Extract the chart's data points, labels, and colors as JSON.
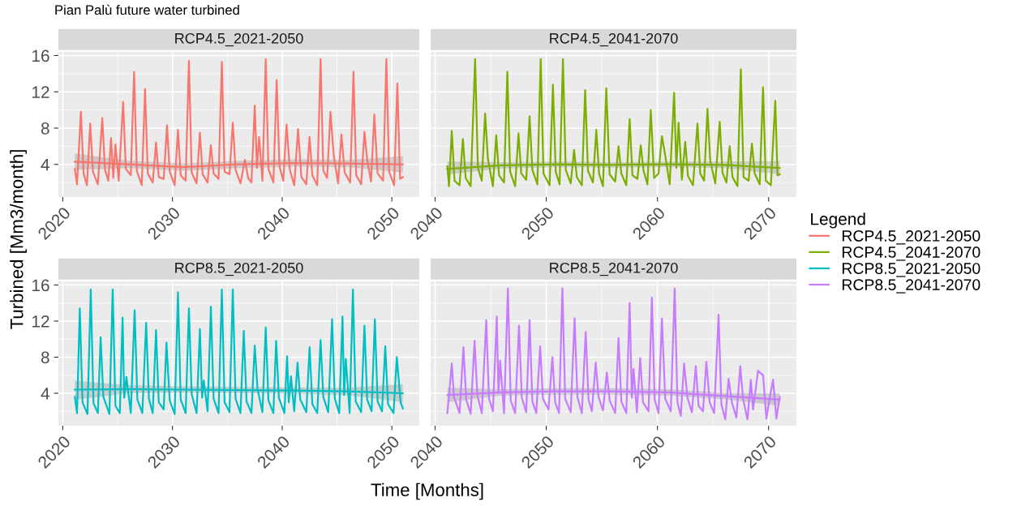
{
  "chart_data": [
    {
      "type": "line",
      "title": "RCP4.5_2021-2050",
      "annotations": [
        "Pian Palù future water turbined"
      ],
      "ylabel": "Turbined [Mm3/month]",
      "legend_title": "Legend",
      "legend": "right",
      "grid": true,
      "xlim": [
        2019.6,
        2052.5
      ],
      "xticks": [
        2020,
        2030,
        2040,
        2050
      ],
      "ylim": [
        0.4,
        16.4
      ],
      "yticks": [
        4,
        8,
        12,
        16
      ],
      "series": [
        {
          "name": "RCP4.5_2021-2050",
          "color": "#f8766d",
          "x": [
            2021.1,
            2021.3,
            2021.65,
            2021.9,
            2022.2,
            2022.5,
            2022.75,
            2023.2,
            2023.6,
            2023.85,
            2024.15,
            2024.4,
            2024.6,
            2024.8,
            2025.1,
            2025.5,
            2025.75,
            2026.2,
            2026.5,
            2026.75,
            2027.2,
            2027.5,
            2027.75,
            2028.2,
            2028.5,
            2028.75,
            2029.2,
            2029.5,
            2029.75,
            2030.2,
            2030.5,
            2030.75,
            2031.2,
            2031.5,
            2031.75,
            2032.2,
            2032.5,
            2032.75,
            2033.2,
            2033.5,
            2033.75,
            2034.2,
            2034.5,
            2034.75,
            2035.2,
            2035.5,
            2035.75,
            2036.2,
            2036.6,
            2036.9,
            2037.2,
            2037.5,
            2037.7,
            2037.9,
            2038.2,
            2038.5,
            2038.75,
            2039.2,
            2039.5,
            2039.75,
            2040.1,
            2040.4,
            2040.7,
            2041.1,
            2041.45,
            2041.75,
            2042.2,
            2042.5,
            2042.75,
            2043.2,
            2043.5,
            2043.75,
            2044.1,
            2044.4,
            2044.7,
            2045.1,
            2045.4,
            2045.7,
            2046.2,
            2046.5,
            2046.75,
            2047.2,
            2047.5,
            2047.75,
            2048.1,
            2048.4,
            2048.7,
            2049.2,
            2049.5,
            2049.75,
            2050.2,
            2050.5,
            2050.75,
            2051.0
          ],
          "values": [
            3.5,
            1.8,
            9.8,
            3.0,
            1.7,
            8.5,
            3.2,
            1.8,
            9.1,
            3.4,
            2.2,
            6.9,
            2.5,
            6.2,
            2.2,
            10.9,
            3.5,
            2.8,
            14.2,
            3.3,
            1.7,
            12.3,
            3.0,
            2.0,
            6.4,
            2.6,
            2.4,
            8.3,
            3.2,
            1.7,
            7.8,
            2.8,
            2.2,
            15.4,
            3.1,
            1.9,
            7.5,
            2.9,
            2.0,
            6.1,
            3.0,
            2.4,
            15.3,
            3.2,
            2.9,
            8.6,
            3.4,
            1.9,
            4.5,
            2.5,
            2.0,
            10.5,
            3.6,
            7.0,
            2.2,
            15.6,
            3.5,
            2.0,
            13.3,
            3.8,
            2.2,
            8.4,
            3.4,
            1.7,
            7.9,
            2.6,
            1.8,
            7.0,
            2.8,
            1.7,
            15.6,
            3.3,
            2.5,
            9.8,
            5.0,
            1.9,
            7.3,
            3.1,
            2.0,
            14.2,
            2.8,
            1.8,
            7.6,
            4.5,
            2.1,
            9.5,
            3.0,
            2.2,
            15.6,
            3.2,
            1.7,
            12.9,
            2.4,
            2.6
          ]
        },
        {
          "type": "line",
          "color": "#f8766d",
          "x": [
            2021.1,
            2026,
            2031,
            2036,
            2041,
            2046,
            2051
          ],
          "values": [
            4.3,
            4.0,
            3.7,
            4.0,
            4.15,
            4.1,
            4.0
          ],
          "lower": [
            3.4,
            3.6,
            3.3,
            3.6,
            3.75,
            3.7,
            3.1
          ],
          "upper": [
            5.2,
            4.4,
            4.1,
            4.4,
            4.55,
            4.5,
            4.9
          ]
        }
      ]
    },
    {
      "type": "line",
      "title": "RCP4.5_2041-2070",
      "legend": "right",
      "grid": true,
      "tick_labels": "x",
      "xlim": [
        2039.6,
        2072.5
      ],
      "xticks": [
        2040,
        2050,
        2060,
        2070
      ],
      "ylim": [
        0.4,
        16.4
      ],
      "yticks": [
        4,
        8,
        12,
        16
      ],
      "series": [
        {
          "name": "RCP4.5_2041-2070",
          "color": "#7cae00",
          "x": [
            2041.1,
            2041.25,
            2041.5,
            2041.75,
            2042.2,
            2042.5,
            2042.75,
            2043.2,
            2043.6,
            2043.85,
            2044.2,
            2044.5,
            2044.75,
            2045.2,
            2045.5,
            2045.75,
            2046.2,
            2046.5,
            2046.75,
            2047.2,
            2047.5,
            2047.75,
            2048.2,
            2048.5,
            2048.75,
            2049.2,
            2049.5,
            2049.75,
            2050.3,
            2050.6,
            2050.85,
            2051.2,
            2051.5,
            2051.75,
            2052.2,
            2052.5,
            2052.75,
            2053.2,
            2053.5,
            2053.75,
            2054.2,
            2054.5,
            2054.75,
            2055.1,
            2055.4,
            2055.7,
            2056.2,
            2056.5,
            2056.75,
            2057.2,
            2057.5,
            2057.75,
            2058.2,
            2058.5,
            2058.75,
            2059.1,
            2059.4,
            2059.7,
            2060.1,
            2060.4,
            2060.7,
            2061.1,
            2061.5,
            2061.7,
            2061.9,
            2062.2,
            2062.5,
            2062.75,
            2063.2,
            2063.6,
            2063.85,
            2064.2,
            2064.5,
            2064.75,
            2065.2,
            2065.6,
            2065.85,
            2066.2,
            2066.5,
            2066.75,
            2067.2,
            2067.5,
            2067.75,
            2068.2,
            2068.5,
            2068.75,
            2069.2,
            2069.5,
            2069.75,
            2070.2,
            2070.6,
            2070.8,
            2071.0
          ],
          "values": [
            3.8,
            1.6,
            7.7,
            2.2,
            1.7,
            6.8,
            2.5,
            1.6,
            15.6,
            3.6,
            2.2,
            9.6,
            4.6,
            1.6,
            7.2,
            2.8,
            2.0,
            14.2,
            3.2,
            1.6,
            7.4,
            3.0,
            2.3,
            9.3,
            3.4,
            1.8,
            15.6,
            3.0,
            1.7,
            12.8,
            3.2,
            1.8,
            15.6,
            3.4,
            1.9,
            5.6,
            2.6,
            1.7,
            12.2,
            3.3,
            2.0,
            7.8,
            3.0,
            1.6,
            12.4,
            2.9,
            2.1,
            6.0,
            3.0,
            1.7,
            9.0,
            2.8,
            2.4,
            6.1,
            3.3,
            1.8,
            10.0,
            2.5,
            3.0,
            7.1,
            5.0,
            1.8,
            11.9,
            3.6,
            8.6,
            2.3,
            6.5,
            2.7,
            1.7,
            8.5,
            3.0,
            2.2,
            10.1,
            4.4,
            1.9,
            8.7,
            3.1,
            2.0,
            6.0,
            2.6,
            1.6,
            14.5,
            2.6,
            2.2,
            6.3,
            3.0,
            1.8,
            12.5,
            2.2,
            1.7,
            11.0,
            2.8,
            2.9
          ]
        },
        {
          "type": "line",
          "color": "#7cae00",
          "x": [
            2041.1,
            2046,
            2051,
            2056,
            2061,
            2066,
            2071
          ],
          "values": [
            3.5,
            3.9,
            4.0,
            3.95,
            4.0,
            3.95,
            3.6
          ],
          "lower": [
            2.9,
            3.55,
            3.7,
            3.65,
            3.7,
            3.6,
            2.9
          ],
          "upper": [
            4.3,
            4.25,
            4.3,
            4.25,
            4.3,
            4.3,
            4.35
          ]
        }
      ]
    },
    {
      "type": "line",
      "title": "RCP8.5_2021-2050",
      "xlabel": "Time [Months]",
      "legend": "right",
      "grid": true,
      "xlim": [
        2019.6,
        2052.5
      ],
      "xticks": [
        2020,
        2030,
        2040,
        2050
      ],
      "ylim": [
        0.4,
        16.4
      ],
      "yticks": [
        4,
        8,
        12,
        16
      ],
      "series": [
        {
          "name": "RCP8.5_2021-2050",
          "color": "#00bfc4",
          "x": [
            2021.1,
            2021.3,
            2021.55,
            2021.8,
            2022.25,
            2022.55,
            2022.8,
            2023.2,
            2023.45,
            2023.7,
            2024.25,
            2024.55,
            2024.8,
            2025.2,
            2025.45,
            2025.6,
            2025.8,
            2026.2,
            2026.55,
            2026.8,
            2027.25,
            2027.6,
            2027.85,
            2028.2,
            2028.5,
            2028.75,
            2029.2,
            2029.45,
            2029.75,
            2030.2,
            2030.5,
            2030.75,
            2031.2,
            2031.5,
            2031.75,
            2032.2,
            2032.5,
            2032.7,
            2032.85,
            2033.2,
            2033.5,
            2033.75,
            2034.2,
            2034.5,
            2034.75,
            2035.2,
            2035.5,
            2035.75,
            2036.2,
            2036.5,
            2036.75,
            2037.2,
            2037.5,
            2037.75,
            2038.2,
            2038.5,
            2038.75,
            2039.2,
            2039.45,
            2039.7,
            2040.2,
            2040.45,
            2040.6,
            2040.8,
            2041.1,
            2041.4,
            2041.65,
            2042.2,
            2042.5,
            2042.75,
            2043.2,
            2043.5,
            2043.75,
            2044.2,
            2044.55,
            2044.8,
            2045.2,
            2045.5,
            2045.65,
            2045.8,
            2046.15,
            2046.45,
            2046.7,
            2047.2,
            2047.5,
            2047.75,
            2048.15,
            2048.45,
            2048.7,
            2049.1,
            2049.4,
            2049.65,
            2050.15,
            2050.45,
            2050.8,
            2051.0
          ],
          "values": [
            3.6,
            1.8,
            13.4,
            3.0,
            1.7,
            15.5,
            2.9,
            1.8,
            10.2,
            3.6,
            1.7,
            15.5,
            2.6,
            1.8,
            12.4,
            3.5,
            5.8,
            1.8,
            13.2,
            3.3,
            1.8,
            11.8,
            3.4,
            1.8,
            11.0,
            3.0,
            2.2,
            9.6,
            3.2,
            1.7,
            15.2,
            3.3,
            1.8,
            13.4,
            3.9,
            1.8,
            11.1,
            3.5,
            5.4,
            2.0,
            13.6,
            3.4,
            1.8,
            15.5,
            3.0,
            1.9,
            15.5,
            3.4,
            1.8,
            10.9,
            3.1,
            1.8,
            9.3,
            4.5,
            1.9,
            11.3,
            3.2,
            1.8,
            9.8,
            3.5,
            1.8,
            8.1,
            3.0,
            5.9,
            2.0,
            7.4,
            3.3,
            1.9,
            9.1,
            2.8,
            1.8,
            9.9,
            3.6,
            1.9,
            12.2,
            3.4,
            1.8,
            12.5,
            3.8,
            7.8,
            1.8,
            15.5,
            3.1,
            1.9,
            11.5,
            3.3,
            2.0,
            12.2,
            3.1,
            2.0,
            9.2,
            2.8,
            1.8,
            8.0,
            3.0,
            2.3
          ]
        },
        {
          "type": "line",
          "color": "#00bfc4",
          "x": [
            2021.1,
            2026,
            2031,
            2036,
            2041,
            2046,
            2051
          ],
          "values": [
            4.4,
            4.45,
            4.4,
            4.35,
            4.3,
            4.2,
            4.0
          ],
          "lower": [
            3.3,
            4.0,
            4.05,
            4.0,
            3.95,
            3.8,
            3.0
          ],
          "upper": [
            5.4,
            4.9,
            4.75,
            4.7,
            4.65,
            4.6,
            5.0
          ]
        }
      ]
    },
    {
      "type": "line",
      "title": "RCP8.5_2041-2070",
      "legend": "right",
      "grid": true,
      "tick_labels": "x",
      "xlim": [
        2039.6,
        2072.5
      ],
      "xticks": [
        2040,
        2050,
        2060,
        2070
      ],
      "ylim": [
        0.4,
        16.4
      ],
      "yticks": [
        4,
        8,
        12,
        16
      ],
      "series": [
        {
          "name": "RCP8.5_2041-2070",
          "color": "#c77cff",
          "x": [
            2041.1,
            2041.25,
            2041.5,
            2041.7,
            2042.2,
            2042.55,
            2042.8,
            2043.2,
            2043.55,
            2043.8,
            2044.2,
            2044.6,
            2044.85,
            2045.2,
            2045.55,
            2045.7,
            2045.85,
            2046.2,
            2046.55,
            2046.8,
            2047.2,
            2047.55,
            2047.8,
            2048.2,
            2048.5,
            2048.75,
            2049.1,
            2049.45,
            2049.7,
            2050.2,
            2050.55,
            2050.8,
            2051.15,
            2051.45,
            2051.7,
            2052.2,
            2052.55,
            2052.8,
            2053.2,
            2053.55,
            2053.8,
            2054.1,
            2054.45,
            2054.7,
            2055.1,
            2055.45,
            2055.7,
            2056.2,
            2056.5,
            2056.75,
            2057.2,
            2057.5,
            2057.7,
            2057.85,
            2058.15,
            2058.45,
            2058.7,
            2059.2,
            2059.5,
            2059.75,
            2060.1,
            2060.4,
            2060.7,
            2061.2,
            2061.55,
            2061.8,
            2062.1,
            2062.4,
            2062.7,
            2063.1,
            2063.45,
            2063.7,
            2064.1,
            2064.4,
            2064.7,
            2065.1,
            2065.5,
            2065.75,
            2066.1,
            2066.4,
            2066.7,
            2067.1,
            2067.45,
            2067.7,
            2068.1,
            2068.4,
            2068.6,
            2069.05,
            2069.3,
            2069.5,
            2069.8,
            2070.1,
            2070.4,
            2070.7,
            2071.0
          ],
          "values": [
            1.8,
            3.7,
            7.3,
            3.6,
            1.8,
            9.1,
            3.3,
            1.7,
            9.8,
            3.8,
            1.8,
            12.1,
            3.4,
            2.0,
            12.5,
            4.0,
            7.6,
            1.8,
            15.6,
            3.2,
            1.8,
            11.5,
            3.5,
            1.9,
            12.1,
            3.1,
            1.8,
            9.2,
            3.4,
            2.2,
            8.0,
            3.0,
            1.8,
            15.6,
            3.4,
            1.9,
            12.3,
            3.6,
            1.8,
            10.8,
            3.3,
            2.0,
            7.4,
            3.6,
            2.1,
            6.3,
            3.2,
            1.8,
            10.1,
            3.1,
            1.8,
            14.0,
            3.5,
            6.7,
            1.9,
            7.9,
            3.0,
            2.0,
            14.6,
            3.3,
            1.8,
            12.3,
            3.4,
            2.0,
            15.6,
            3.0,
            1.5,
            7.3,
            3.5,
            1.9,
            7.0,
            2.6,
            2.0,
            7.5,
            3.0,
            1.8,
            12.7,
            2.8,
            1.1,
            5.6,
            3.0,
            1.3,
            7.0,
            3.4,
            1.1,
            5.5,
            2.2,
            6.5,
            6.2,
            6.0,
            1.2,
            3.5,
            5.5,
            1.2,
            3.6
          ]
        },
        {
          "type": "line",
          "color": "#c77cff",
          "x": [
            2041.1,
            2046,
            2051,
            2056,
            2061,
            2066,
            2071
          ],
          "values": [
            3.8,
            4.1,
            4.2,
            4.2,
            4.1,
            3.7,
            3.3
          ],
          "lower": [
            3.0,
            3.75,
            3.85,
            3.85,
            3.75,
            3.35,
            2.6
          ],
          "upper": [
            4.6,
            4.45,
            4.55,
            4.55,
            4.45,
            4.05,
            4.0
          ]
        }
      ]
    }
  ]
}
